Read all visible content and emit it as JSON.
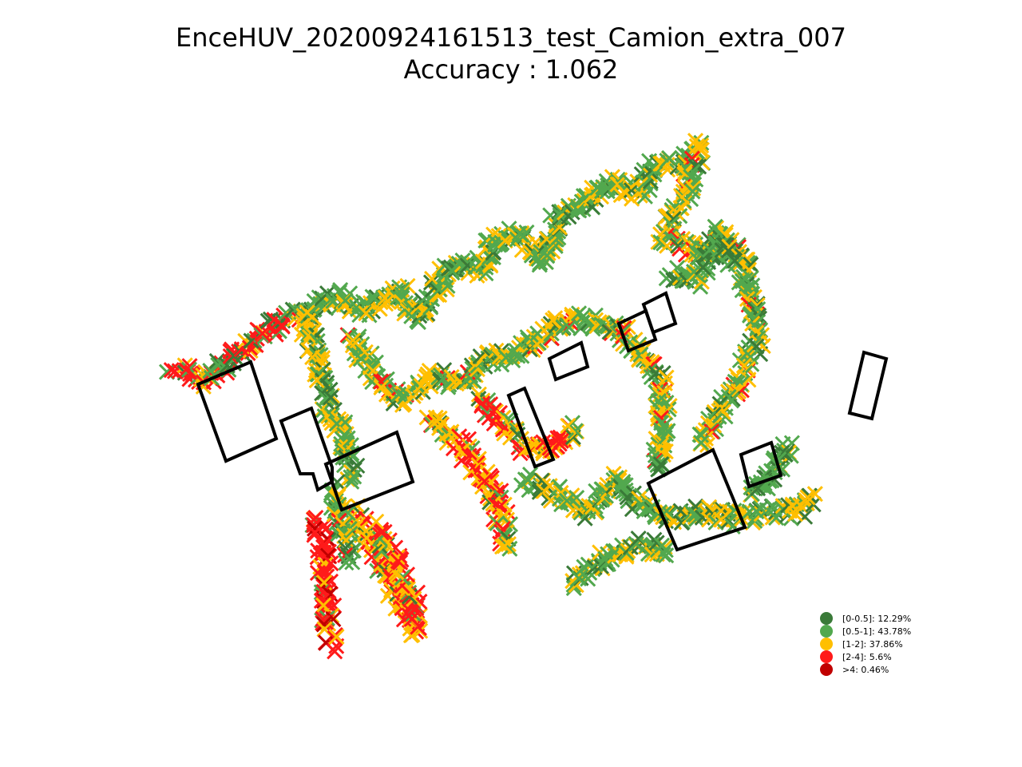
{
  "title_line1": "EnceHUV_20200924161513_test_Camion_extra_007",
  "title_line2": "Accuracy : 1.062",
  "chart_data": {
    "type": "scatter",
    "marker": "x",
    "axes_visible": false,
    "legend_placement": "lower-right",
    "legend": [
      {
        "label": "[0-0.5]: 12.29%",
        "color": "#3a7a38"
      },
      {
        "label": "[0.5-1]: 43.78%",
        "color": "#52a84e"
      },
      {
        "label": "[1-2]: 37.86%",
        "color": "#ffbf00"
      },
      {
        "label": "[2-4]: 5.6%",
        "color": "#ff1a1a"
      },
      {
        "label": ">4: 0.46%",
        "color": "#c00000"
      }
    ],
    "colors": [
      "#3a7a38",
      "#52a84e",
      "#ffbf00",
      "#ff1a1a",
      "#c00000"
    ]
  }
}
